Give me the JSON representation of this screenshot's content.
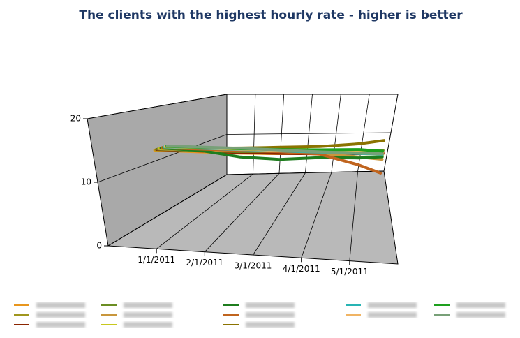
{
  "chart_data": {
    "type": "line3d",
    "title": "The clients with the highest hourly rate - higher is better",
    "x": [
      0,
      1,
      2,
      3,
      4,
      5,
      5.6
    ],
    "xlim": [
      0,
      6
    ],
    "xticks": [
      {
        "value": 1,
        "label": "1/1/2011"
      },
      {
        "value": 2,
        "label": "2/1/2011"
      },
      {
        "value": 3,
        "label": "3/1/2011"
      },
      {
        "value": 4,
        "label": "4/1/2011"
      },
      {
        "value": 5,
        "label": "5/1/2011"
      }
    ],
    "ylim": [
      0,
      20
    ],
    "yticks": [
      0,
      10,
      20
    ],
    "grid": true,
    "series": [
      {
        "color": "#e8961e",
        "values": [
          12,
          12,
          12,
          12.2,
          12.5,
          12.8,
          13
        ]
      },
      {
        "color": "#a0961e",
        "values": [
          12,
          12.1,
          12.3,
          12.5,
          12.6,
          12.7,
          12.8
        ]
      },
      {
        "color": "#8b2500",
        "values": [
          12,
          12,
          12,
          12.1,
          12.3,
          12.6,
          12.9
        ]
      },
      {
        "color": "#6b8e23",
        "values": [
          12,
          12,
          12.1,
          12.4,
          12.8,
          13.2,
          13.3
        ]
      },
      {
        "color": "#c8963c",
        "values": [
          12,
          12,
          12.2,
          12.5,
          12.2,
          11.8,
          11.5
        ]
      },
      {
        "color": "#c8c81e",
        "values": [
          12,
          12.2,
          12.6,
          12.9,
          12.7,
          12.4,
          12.3
        ]
      },
      {
        "color": "#1e7d1e",
        "values": [
          12,
          11.8,
          10.8,
          10.6,
          11.2,
          11.4,
          11.8
        ]
      },
      {
        "color": "#c0641e",
        "values": [
          12,
          12,
          12,
          12,
          11.8,
          10,
          8.5
        ]
      },
      {
        "color": "#8b7300",
        "values": [
          12,
          12.1,
          12.4,
          12.8,
          13.2,
          14,
          14.8
        ]
      },
      {
        "color": "#28b4b4",
        "values": [
          12,
          12,
          12,
          12,
          12,
          12,
          12
        ]
      },
      {
        "color": "#f0b464",
        "values": [
          12,
          12,
          12,
          12,
          12.1,
          12.2,
          12.2
        ]
      },
      {
        "color": "#1ea01e",
        "values": [
          12,
          12,
          12,
          12.1,
          12.3,
          12.6,
          12.4
        ]
      },
      {
        "color": "#78a078",
        "values": [
          12,
          12,
          12,
          11.9,
          11.8,
          11.8,
          11.8
        ]
      }
    ]
  }
}
